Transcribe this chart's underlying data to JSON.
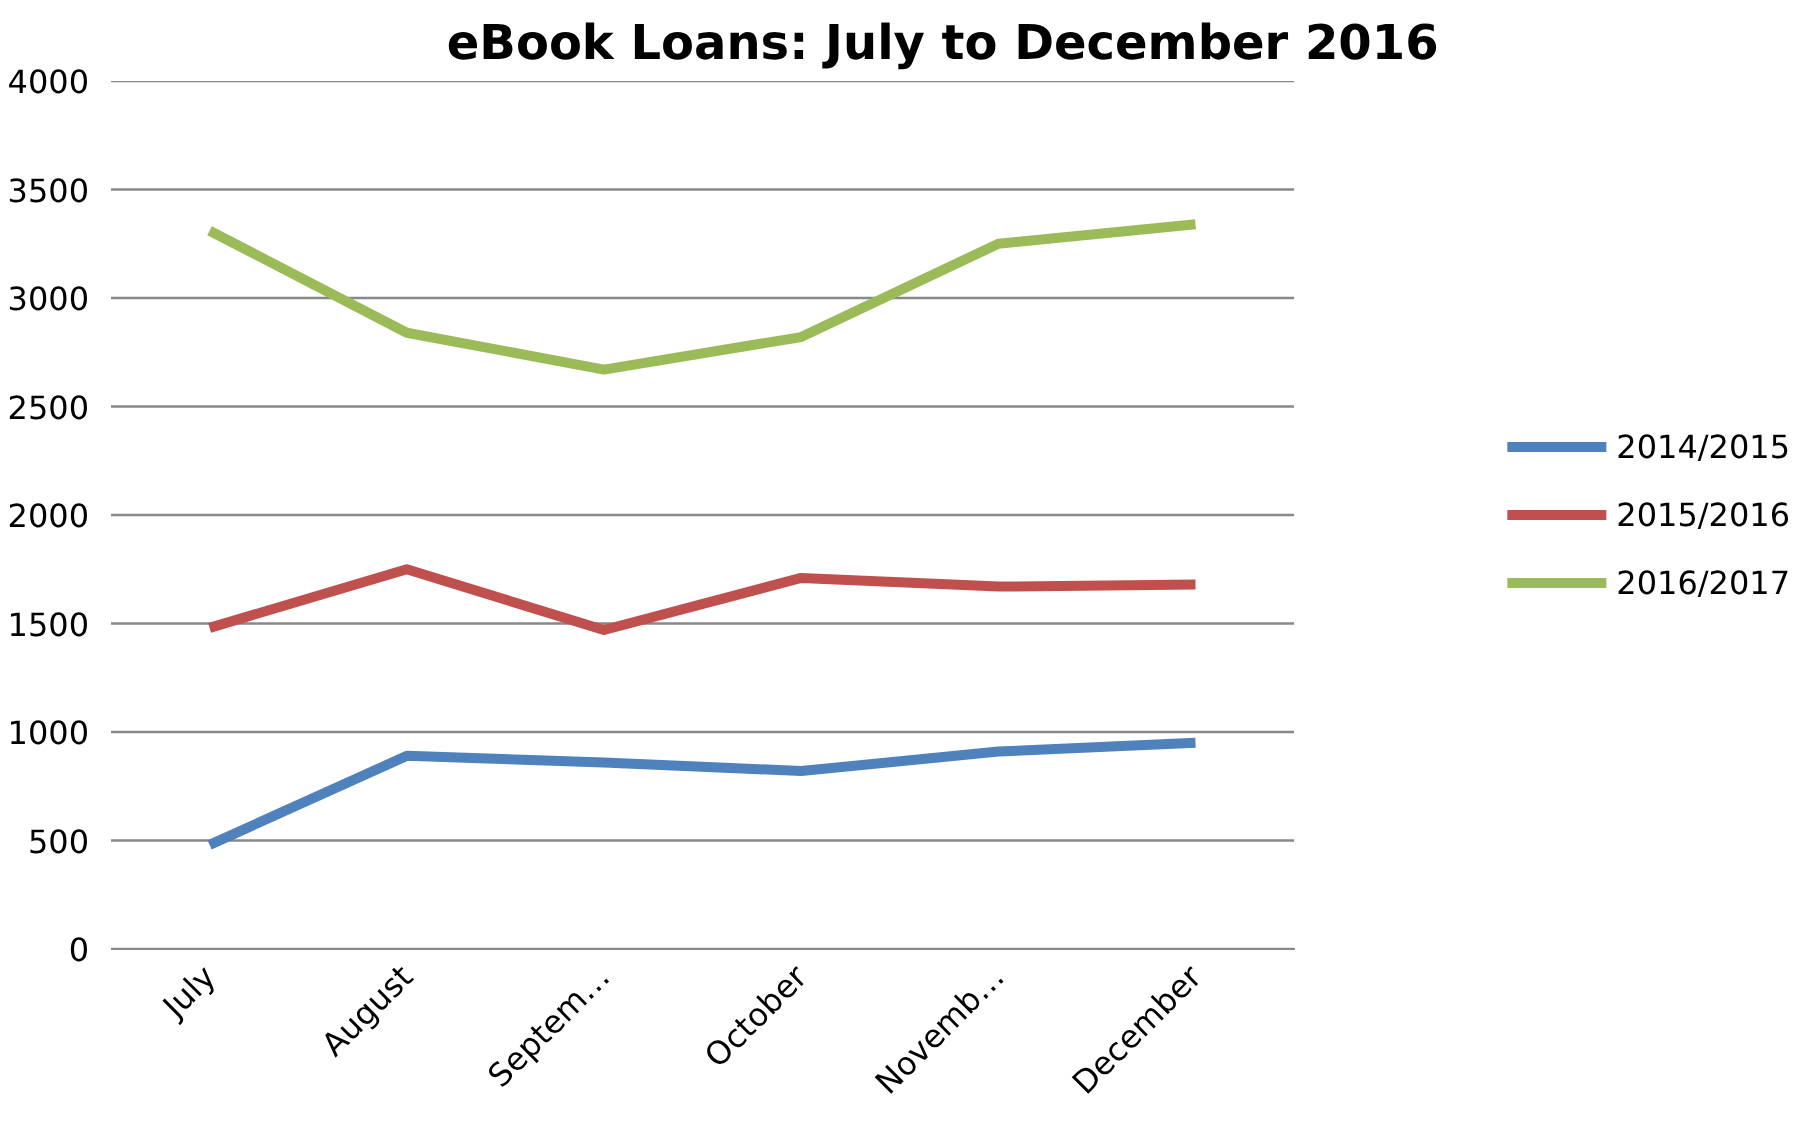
{
  "chart_data": {
    "type": "line",
    "title": "eBook Loans:  July to December 2016",
    "categories": [
      "July",
      "August",
      "Septem…",
      "October",
      "Novemb…",
      "December"
    ],
    "series": [
      {
        "name": "2014/2015",
        "color": "#4f81bd",
        "values": [
          480,
          890,
          860,
          820,
          910,
          950
        ]
      },
      {
        "name": "2015/2016",
        "color": "#c0504d",
        "values": [
          1480,
          1750,
          1470,
          1710,
          1670,
          1680
        ]
      },
      {
        "name": "2016/2017",
        "color": "#9bbb59",
        "values": [
          3310,
          2840,
          2670,
          2820,
          3250,
          3340
        ]
      }
    ],
    "ylim": [
      0,
      4000
    ],
    "yticks": [
      0,
      500,
      1000,
      1500,
      2000,
      2500,
      3000,
      3500,
      4000
    ],
    "grid": "y",
    "legend": "right",
    "marker": "none",
    "line_style": "solid"
  }
}
